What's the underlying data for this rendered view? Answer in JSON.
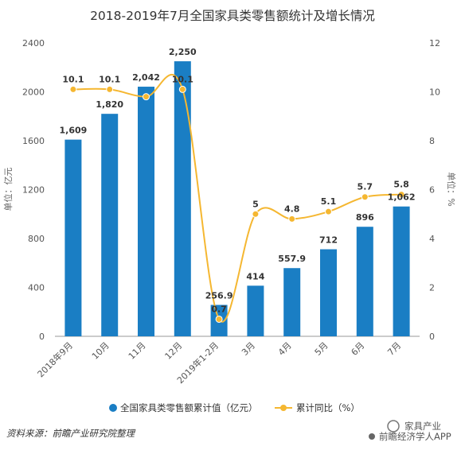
{
  "chart_data": {
    "type": "bar",
    "title": "2018-2019年7月全国家具类零售额统计及增长情况",
    "categories": [
      "2018年9月",
      "10月",
      "11月",
      "12月",
      "2019年1-2月",
      "3月",
      "4月",
      "5月",
      "6月",
      "7月"
    ],
    "ylabel_left": "单位：亿元",
    "ylabel_right": "单位：%",
    "ylim_left": [
      0,
      2400
    ],
    "ylim_right": [
      0,
      12
    ],
    "yticks_left": [
      "0",
      "400",
      "800",
      "1200",
      "1600",
      "2000",
      "2400"
    ],
    "yticks_right": [
      "0",
      "2",
      "4",
      "6",
      "8",
      "10",
      "12"
    ],
    "series": [
      {
        "name": "全国家具类零售额累计值（亿元）",
        "type": "bar",
        "axis": "left",
        "color": "#1a7ec4",
        "values": [
          1609,
          1820,
          2042,
          2250,
          256.9,
          414,
          557.9,
          712,
          896,
          1062
        ],
        "labels": [
          "1,609",
          "1,820",
          "2,042",
          "2,250",
          "256.9",
          "414",
          "557.9",
          "712",
          "896",
          "1,062"
        ]
      },
      {
        "name": "累计同比（%）",
        "type": "line",
        "axis": "right",
        "color": "#f5b731",
        "values": [
          10.1,
          10.1,
          9.8,
          10.1,
          0.7,
          5.0,
          4.8,
          5.1,
          5.7,
          5.8
        ],
        "labels": [
          "10.1",
          "10.1",
          "",
          "10.1",
          "0.7",
          "5",
          "4.8",
          "5.1",
          "5.7",
          "5.8"
        ]
      }
    ],
    "legend_position": "bottom",
    "grid": false
  },
  "footer": {
    "source": "资料来源：前瞻产业研究院整理",
    "brand_top": "家具产业",
    "brand_bottom": "前瞻经济学人APP"
  }
}
